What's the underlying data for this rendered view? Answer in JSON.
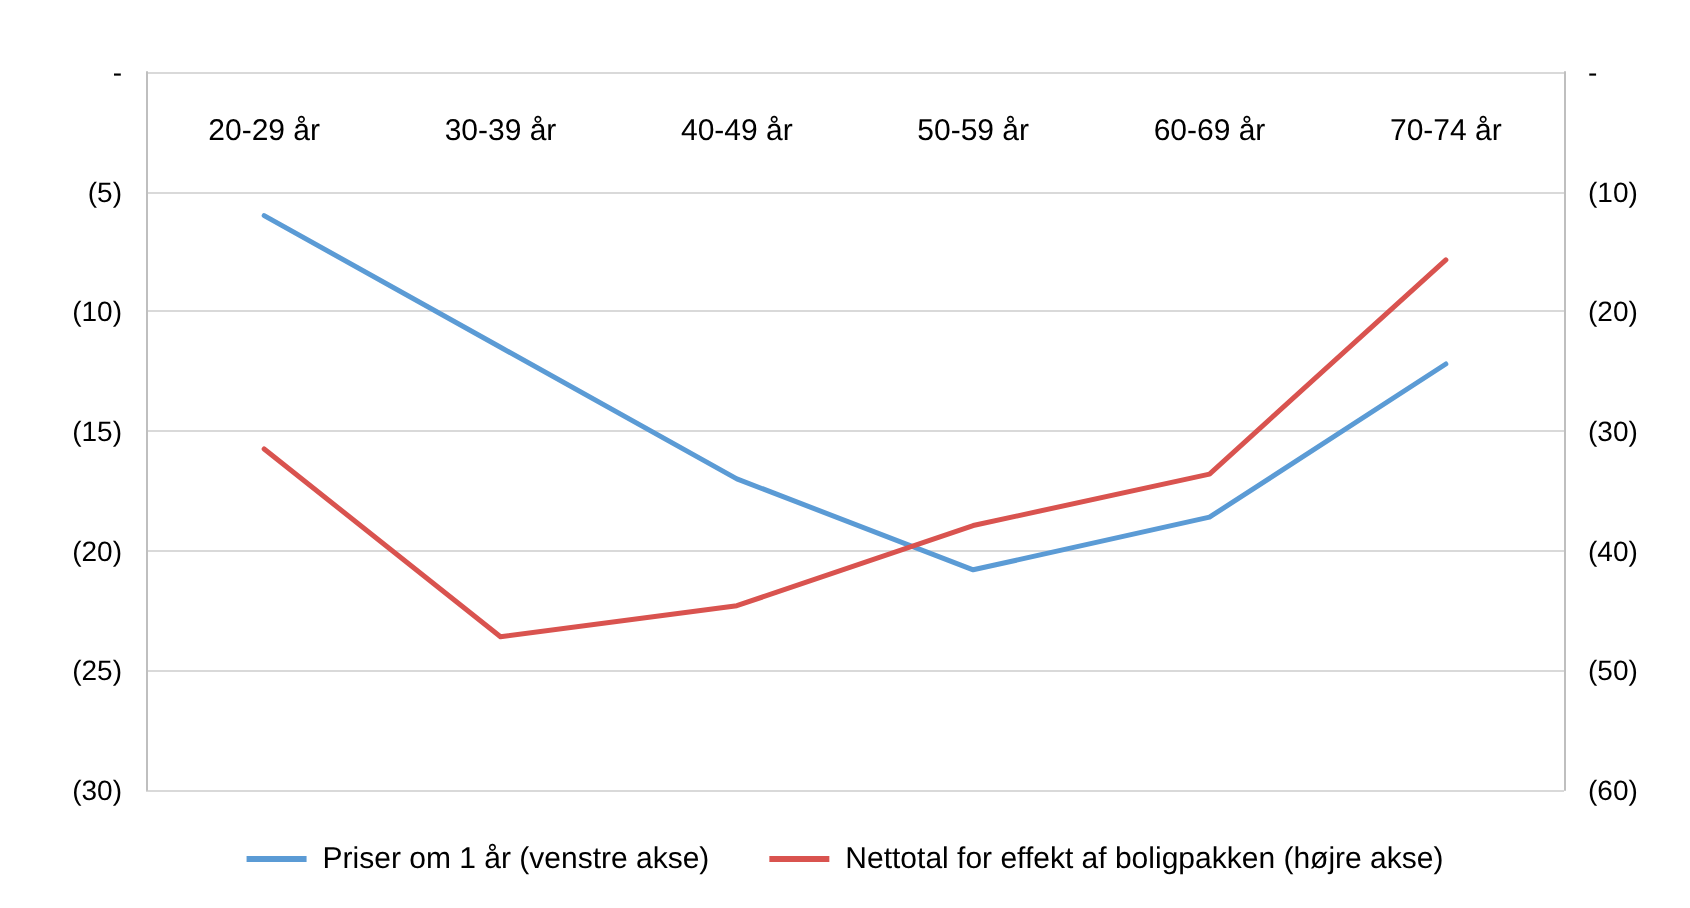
{
  "chart_data": {
    "type": "line",
    "categories": [
      "20-29 år",
      "30-39 år",
      "40-49 år",
      "50-59 år",
      "60-69 år",
      "70-74 år"
    ],
    "series": [
      {
        "name": "Priser om 1 år (venstre akse)",
        "color": "#5b9bd5",
        "values": [
          -6.0,
          -11.5,
          -17.0,
          -20.8,
          -18.6,
          -12.2
        ]
      },
      {
        "name": "Nettotal for effekt af boligpakken (højre akse)",
        "color": "#d9534f",
        "axis": "y2",
        "values": [
          -31.5,
          -47.2,
          -44.6,
          -37.9,
          -33.6,
          -15.7
        ]
      }
    ],
    "ylim": [
      -30,
      0
    ],
    "yticks": [
      {
        "value": -30,
        "label": "(30)"
      },
      {
        "value": -25,
        "label": "(25)"
      },
      {
        "value": -20,
        "label": "(20)"
      },
      {
        "value": -15,
        "label": "(15)"
      },
      {
        "value": -10,
        "label": "(10)"
      },
      {
        "value": -5,
        "label": "(5)"
      },
      {
        "value": 0,
        "label": "-"
      }
    ],
    "y2lim": [
      -60,
      0
    ],
    "y2ticks": [
      {
        "value": -60,
        "label": "(60)"
      },
      {
        "value": -50,
        "label": "(50)"
      },
      {
        "value": -40,
        "label": "(40)"
      },
      {
        "value": -30,
        "label": "(30)"
      },
      {
        "value": -20,
        "label": "(20)"
      },
      {
        "value": -10,
        "label": "(10)"
      },
      {
        "value": 0,
        "label": "-"
      }
    ],
    "grid": "y",
    "legend": "bottom",
    "marker": "none",
    "line_style": "solid"
  }
}
